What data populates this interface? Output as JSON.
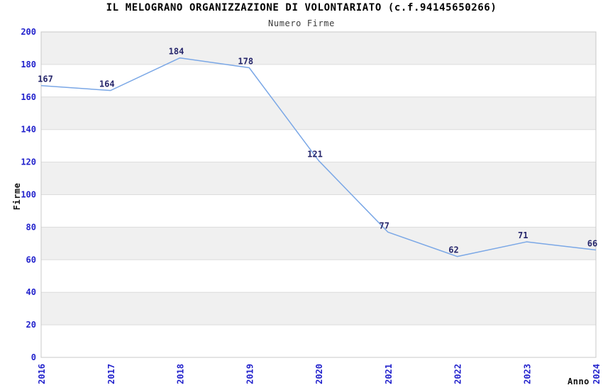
{
  "header": {
    "title": "IL MELOGRANO ORGANIZZAZIONE DI VOLONTARIATO (c.f.94145650266)",
    "subtitle": "Numero Firme"
  },
  "colors": {
    "line": "#7aa7e6",
    "tick_label": "#2222cc",
    "data_label": "#26266b",
    "band_gray": "#f0f0f0",
    "band_white": "#ffffff",
    "band_line": "#dcdcdc",
    "plot_border": "#c8c8c8",
    "axis_title": "#111111"
  },
  "chart_data": {
    "type": "line",
    "title": "IL MELOGRANO ORGANIZZAZIONE DI VOLONTARIATO (c.f.94145650266)",
    "subtitle": "Numero Firme",
    "categories": [
      "2016",
      "2017",
      "2018",
      "2019",
      "2020",
      "2021",
      "2022",
      "2023",
      "2024"
    ],
    "values": [
      167,
      164,
      184,
      178,
      121,
      77,
      62,
      71,
      66
    ],
    "xlabel": "Anno",
    "ylabel": "Firme",
    "ylim": [
      0,
      200
    ],
    "yticks": [
      0,
      20,
      40,
      60,
      80,
      100,
      120,
      140,
      160,
      180,
      200
    ],
    "grid": "alternating-horizontal-bands",
    "legend": "none",
    "markers": "none",
    "data_labels": true
  }
}
